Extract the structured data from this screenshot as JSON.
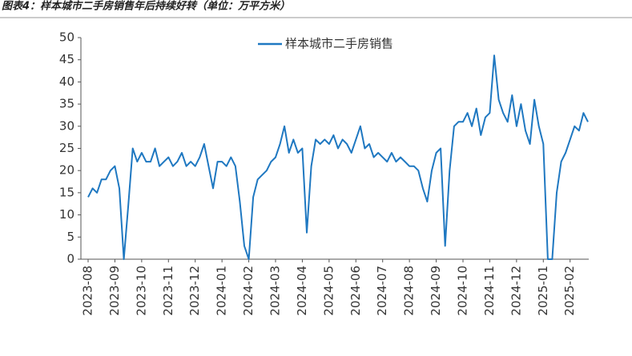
{
  "chart_data": {
    "type": "line",
    "title": "图表4：样本城市二手房销售年后持续好转（单位：万平方米）",
    "categories": [
      "2023-08",
      null,
      null,
      null,
      null,
      null,
      "2023-09",
      null,
      null,
      null,
      null,
      null,
      "2023-10",
      null,
      null,
      null,
      null,
      null,
      "2023-11",
      null,
      null,
      null,
      null,
      null,
      "2023-12",
      null,
      null,
      null,
      null,
      null,
      "2024-01",
      null,
      null,
      null,
      null,
      null,
      "2024-02",
      null,
      null,
      null,
      null,
      null,
      "2024-03",
      null,
      null,
      null,
      null,
      null,
      "2024-04",
      null,
      null,
      null,
      null,
      null,
      "2024-05",
      null,
      null,
      null,
      null,
      null,
      "2024-06",
      null,
      null,
      null,
      null,
      null,
      "2024-07",
      null,
      null,
      null,
      null,
      null,
      "2024-08",
      null,
      null,
      null,
      null,
      null,
      "2024-09",
      null,
      null,
      null,
      null,
      null,
      "2024-10",
      null,
      null,
      null,
      null,
      null,
      "2024-11",
      null,
      null,
      null,
      null,
      null,
      "2024-12",
      null,
      null,
      null,
      null,
      null,
      "2025-01",
      null,
      null,
      null,
      null,
      null,
      "2025-02",
      null,
      null,
      null,
      null
    ],
    "series": [
      {
        "name": "样本城市二手房销售",
        "color": "#1f78c1",
        "values": [
          14,
          16,
          15,
          18,
          18,
          20,
          21,
          16,
          0,
          12,
          25,
          22,
          24,
          22,
          22,
          25,
          21,
          22,
          23,
          21,
          22,
          24,
          21,
          22,
          21,
          23,
          26,
          21,
          16,
          22,
          22,
          21,
          23,
          21,
          13,
          3,
          0,
          14,
          18,
          19,
          20,
          22,
          23,
          26,
          30,
          24,
          27,
          24,
          25,
          6,
          21,
          27,
          26,
          27,
          26,
          28,
          25,
          27,
          26,
          24,
          27,
          30,
          25,
          26,
          23,
          24,
          23,
          22,
          24,
          22,
          23,
          22,
          21,
          21,
          20,
          16,
          13,
          20,
          24,
          25,
          3,
          20,
          30,
          31,
          31,
          33,
          30,
          34,
          28,
          32,
          33,
          46,
          36,
          33,
          31,
          37,
          30,
          35,
          29,
          26,
          36,
          30,
          26,
          0,
          0,
          15,
          22,
          24,
          27,
          30,
          29,
          33,
          31
        ]
      }
    ],
    "ylim": [
      0,
      50
    ],
    "yticks": [
      0,
      5,
      10,
      15,
      20,
      25,
      30,
      35,
      40,
      45,
      50
    ],
    "legend": "top"
  }
}
